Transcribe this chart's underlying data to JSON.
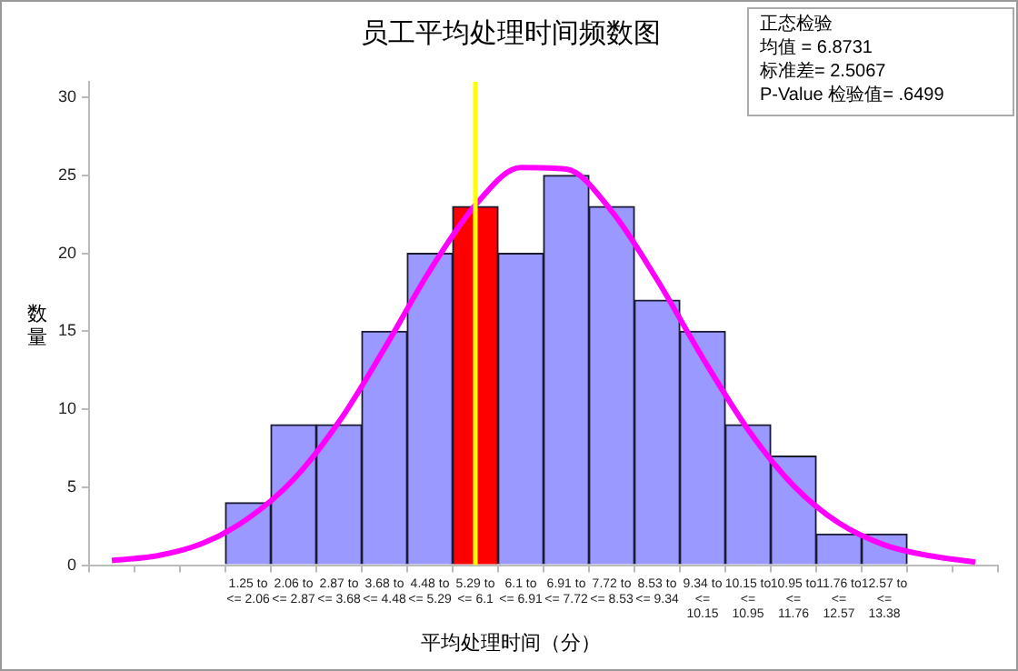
{
  "chart_data": {
    "type": "bar",
    "title": "员工平均处理时间频数图",
    "xlabel": "平均处理时间（分）",
    "ylabel": "数量",
    "categories": [
      null,
      null,
      null,
      "1.25 to <= 2.06",
      "2.06 to <= 2.87",
      "2.87 to <= 3.68",
      "3.68 to <= 4.48",
      "4.48 to <= 5.29",
      "5.29 to <= 6.1",
      "6.1 to <= 6.91",
      "6.91 to <= 7.72",
      "7.72 to <= 8.53",
      "8.53 to <= 9.34",
      "9.34 to <= 10.15",
      "10.15 to <= 10.95",
      "10.95 to <= 11.76",
      "11.76 to <= 12.57",
      "12.57 to <= 13.38",
      null,
      null
    ],
    "series": [
      {
        "colors": [
          "#9999ff",
          "#9999ff",
          "#9999ff",
          "#9999ff",
          "#9999ff",
          "#9999ff",
          "#9999ff",
          "#9999ff",
          "#ff0000",
          "#9999ff",
          "#9999ff",
          "#9999ff",
          "#9999ff",
          "#9999ff",
          "#9999ff",
          "#9999ff",
          "#9999ff",
          "#9999ff",
          "#9999ff",
          "#9999ff"
        ],
        "values": [
          null,
          null,
          null,
          4,
          9,
          9,
          15,
          20,
          23,
          20,
          25,
          23,
          17,
          15,
          9,
          7,
          2,
          2,
          null,
          null
        ]
      },
      {
        "type": "line",
        "color": "#ff00ff",
        "values": [
          0.3,
          0.6,
          1.4,
          3,
          5.5,
          9.2,
          13.9,
          18.9,
          23.1,
          25.5,
          25.4,
          22.7,
          18.3,
          13.3,
          8.7,
          5.1,
          2.7,
          1.3,
          0.6,
          0.2
        ]
      }
    ],
    "ref_lines": [
      {
        "axis": "x",
        "value": "5.29 to <= 6.1",
        "color": "#ffff00"
      }
    ],
    "annotations": [
      "正态检验",
      "均值 = 6.8731",
      "标准差= 2.5067",
      "P-Value 检验值= .6499"
    ],
    "ylim": [
      0,
      31
    ],
    "yticks": [
      0,
      5,
      10,
      15,
      20,
      25,
      30
    ],
    "grid": false,
    "legend": false,
    "marker": "none",
    "line_style": "solid"
  }
}
